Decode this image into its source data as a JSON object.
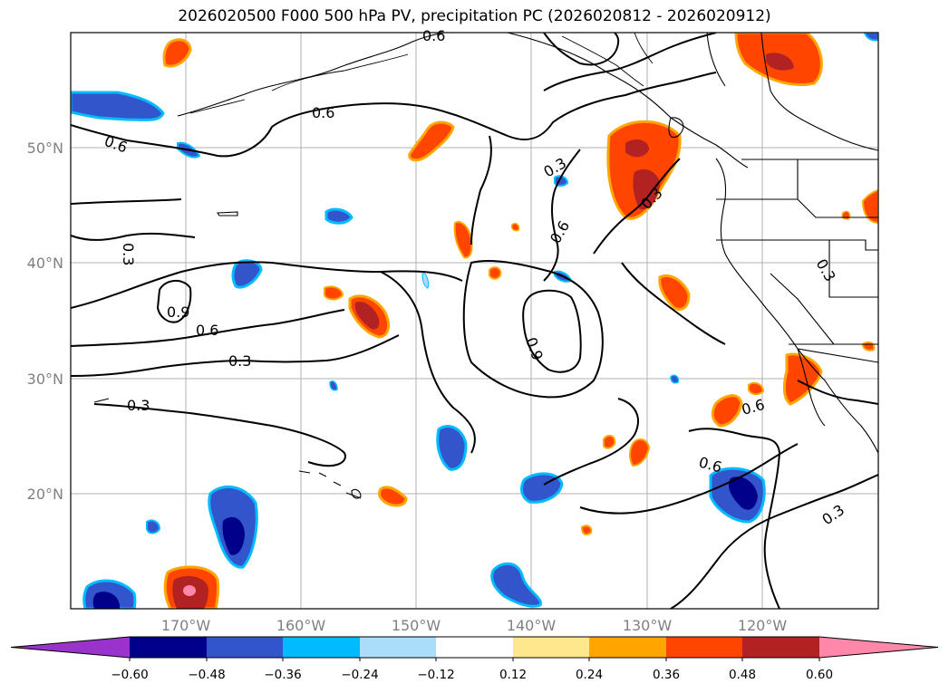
{
  "title": "2026020500 F000 500 hPa PV, precipitation PC (2026020812 - 2026020912)",
  "map": {
    "lat_labels": [
      "50°N",
      "40°N",
      "30°N",
      "20°N"
    ],
    "lon_labels": [
      "170°W",
      "160°W",
      "150°W",
      "140°W",
      "130°W",
      "120°W"
    ],
    "contour_labels": [
      "0.6",
      "0.6",
      "0.6",
      "0.3",
      "0.9",
      "0.6",
      "0.3",
      "0.3",
      "0.3",
      "0.6",
      "0.3",
      "0.9",
      "0.6",
      "0.6",
      "0.3",
      "0.3",
      "0.6"
    ]
  },
  "colorbar": {
    "ticks": [
      "−0.60",
      "−0.48",
      "−0.36",
      "−0.24",
      "−0.12",
      "0.12",
      "0.24",
      "0.36",
      "0.48",
      "0.60"
    ],
    "colors": [
      "#9933cc",
      "#00008b",
      "#3355cc",
      "#00bbff",
      "#aaddf7",
      "#ffffff",
      "#ffe88c",
      "#ffa500",
      "#ff4500",
      "#b22222",
      "#ff88aa"
    ]
  }
}
